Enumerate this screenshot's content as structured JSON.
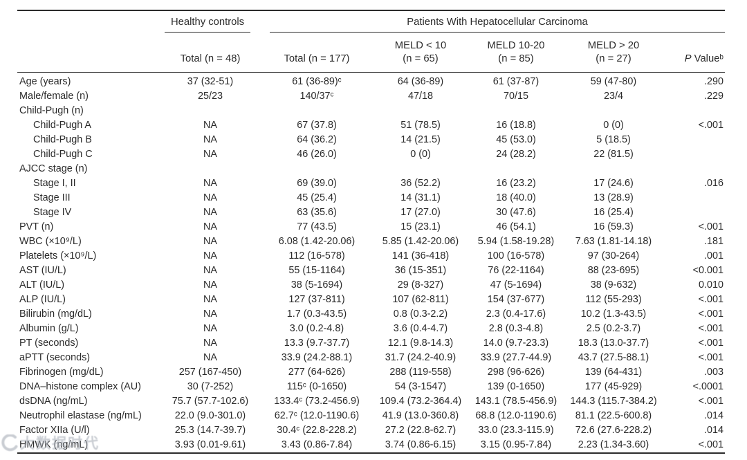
{
  "table": {
    "header": {
      "group_healthy": "Healthy controls",
      "group_hcc": "Patients With Hepatocellular Carcinoma",
      "col_healthy_total": "Total (n = 48)",
      "col_hcc_total": "Total (n = 177)",
      "col_meld_lt10": "MELD < 10\n(n = 65)",
      "col_meld_10_20": "MELD 10-20\n(n = 85)",
      "col_meld_gt20": "MELD > 20\n(n = 27)",
      "p_value_italic": "P",
      "p_value_rest": " Valueᵇ"
    },
    "columns_order": [
      "healthy_total",
      "hcc_total",
      "meld_lt10",
      "meld_10_20",
      "meld_gt20",
      "p_value"
    ],
    "rows": [
      {
        "label": "Age (years)",
        "indent": false,
        "values": [
          "37 (32-51)",
          "61 (36-89)ᶜ",
          "64 (36-89)",
          "61 (37-87)",
          "59 (47-80)",
          ".290"
        ]
      },
      {
        "label": "Male/female (n)",
        "indent": false,
        "values": [
          "25/23",
          "140/37ᶜ",
          "47/18",
          "70/15",
          "23/4",
          ".229"
        ]
      },
      {
        "label": "Child-Pugh (n)",
        "indent": false,
        "values": [
          "",
          "",
          "",
          "",
          "",
          ""
        ]
      },
      {
        "label": "Child-Pugh A",
        "indent": true,
        "values": [
          "NA",
          "67 (37.8)",
          "51 (78.5)",
          "16 (18.8)",
          "0 (0)",
          "<.001"
        ]
      },
      {
        "label": "Child-Pugh B",
        "indent": true,
        "values": [
          "NA",
          "64 (36.2)",
          "14 (21.5)",
          "45 (53.0)",
          "5 (18.5)",
          ""
        ]
      },
      {
        "label": "Child-Pugh C",
        "indent": true,
        "values": [
          "NA",
          "46 (26.0)",
          "0 (0)",
          "24 (28.2)",
          "22 (81.5)",
          ""
        ]
      },
      {
        "label": "AJCC stage (n)",
        "indent": false,
        "values": [
          "",
          "",
          "",
          "",
          "",
          ""
        ]
      },
      {
        "label": "Stage I, II",
        "indent": true,
        "values": [
          "NA",
          "69 (39.0)",
          "36 (52.2)",
          "16 (23.2)",
          "17 (24.6)",
          ".016"
        ]
      },
      {
        "label": "Stage III",
        "indent": true,
        "values": [
          "NA",
          "45 (25.4)",
          "14 (31.1)",
          "18 (40.0)",
          "13 (28.9)",
          ""
        ]
      },
      {
        "label": "Stage IV",
        "indent": true,
        "values": [
          "NA",
          "63 (35.6)",
          "17 (27.0)",
          "30 (47.6)",
          "16 (25.4)",
          ""
        ]
      },
      {
        "label": "PVT (n)",
        "indent": false,
        "values": [
          "NA",
          "77 (43.5)",
          "15 (23.1)",
          "46 (54.1)",
          "16 (59.3)",
          "<.001"
        ]
      },
      {
        "label": "WBC (×10⁹/L)",
        "indent": false,
        "values": [
          "NA",
          "6.08 (1.42-20.06)",
          "5.85 (1.42-20.06)",
          "5.94 (1.58-19.28)",
          "7.63 (1.81-14.18)",
          ".181"
        ]
      },
      {
        "label": "Platelets (×10⁹/L)",
        "indent": false,
        "values": [
          "NA",
          "112 (16-578)",
          "141 (36-418)",
          "100 (16-578)",
          "97 (30-264)",
          ".001"
        ]
      },
      {
        "label": "AST (IU/L)",
        "indent": false,
        "values": [
          "NA",
          "55 (15-1164)",
          "36 (15-351)",
          "76 (22-1164)",
          "88 (23-695)",
          "<0.001"
        ]
      },
      {
        "label": "ALT (IU/L)",
        "indent": false,
        "values": [
          "NA",
          "38 (5-1694)",
          "29 (8-327)",
          "47 (5-1694)",
          "38 (9-632)",
          "0.010"
        ]
      },
      {
        "label": "ALP (IU/L)",
        "indent": false,
        "values": [
          "NA",
          "127 (37-811)",
          "107 (62-811)",
          "154 (37-677)",
          "112 (55-293)",
          "<.001"
        ]
      },
      {
        "label": "Bilirubin (mg/dL)",
        "indent": false,
        "values": [
          "NA",
          "1.7 (0.3-43.5)",
          "0.8 (0.3-2.2)",
          "2.3 (0.4-17.6)",
          "10.2 (1.3-43.5)",
          "<.001"
        ]
      },
      {
        "label": "Albumin (g/L)",
        "indent": false,
        "values": [
          "NA",
          "3.0 (0.2-4.8)",
          "3.6 (0.4-4.7)",
          "2.8 (0.3-4.8)",
          "2.5 (0.2-3.7)",
          "<.001"
        ]
      },
      {
        "label": "PT (seconds)",
        "indent": false,
        "values": [
          "NA",
          "13.3 (9.7-37.7)",
          "12.1 (9.8-14.3)",
          "14.0 (9.7-23.3)",
          "18.3 (13.0-37.7)",
          "<.001"
        ]
      },
      {
        "label": "aPTT (seconds)",
        "indent": false,
        "values": [
          "NA",
          "33.9 (24.2-88.1)",
          "31.7 (24.2-40.9)",
          "33.9 (27.7-44.9)",
          "43.7 (27.5-88.1)",
          "<.001"
        ]
      },
      {
        "label": "Fibrinogen (mg/dL)",
        "indent": false,
        "values": [
          "257 (167-450)",
          "277 (64-626)",
          "288 (119-558)",
          "298 (96-626)",
          "139 (64-431)",
          ".003"
        ]
      },
      {
        "label": "DNA–histone complex (AU)",
        "indent": false,
        "values": [
          "30 (7-252)",
          "115ᶜ (0-1650)",
          "54 (3-1547)",
          "139 (0-1650)",
          "177 (45-929)",
          "<.0001"
        ]
      },
      {
        "label": "dsDNA (ng/mL)",
        "indent": false,
        "values": [
          "75.7 (57.7-102.6)",
          "133.4ᶜ (73.2-456.9)",
          "109.4 (73.2-364.4)",
          "143.1 (78.5-456.9)",
          "144.3 (115.7-384.2)",
          "<.001"
        ]
      },
      {
        "label": "Neutrophil elastase (ng/mL)",
        "indent": false,
        "values": [
          "22.0 (9.0-301.0)",
          "62.7ᶜ (12.0-1190.6)",
          "41.9 (13.0-360.8)",
          "68.8 (12.0-1190.6)",
          "81.1 (22.5-600.8)",
          ".014"
        ]
      },
      {
        "label": "Factor XIIa (U/l)",
        "indent": false,
        "values": [
          "25.3 (14.7-39.7)",
          "30.4ᶜ (22.8-228.2)",
          "27.2 (22.8-62.7)",
          "33.0 (23.3-115.9)",
          "72.6 (27.6-228.2)",
          ".014"
        ]
      },
      {
        "label": "HMWK (ng/mL)",
        "indent": false,
        "values": [
          "3.93 (0.01-9.61)",
          "3.43 (0.86-7.84)",
          "3.74 (0.86-6.15)",
          "3.15 (0.95-7.84)",
          "2.23 (1.34-3.60)",
          "<.001"
        ]
      }
    ]
  },
  "watermark": {
    "text": "大数据时代"
  },
  "colors": {
    "text": "#2b2b2b",
    "rule": "#2b2b2b",
    "watermark": "#aab0b9",
    "background": "#ffffff"
  }
}
